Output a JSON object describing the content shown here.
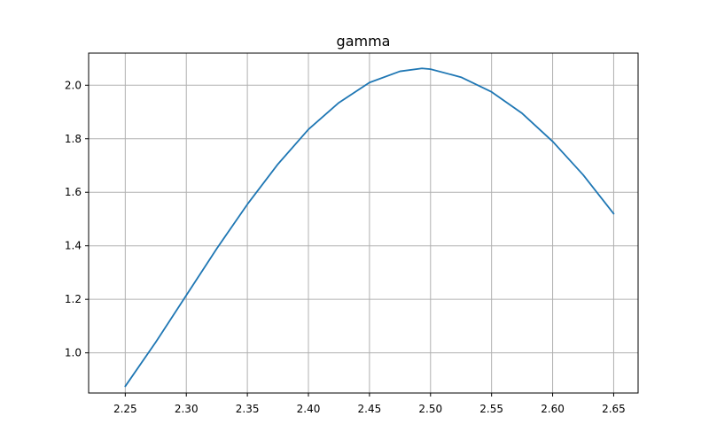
{
  "chart_data": {
    "type": "line",
    "title": "gamma",
    "xlabel": "",
    "ylabel": "",
    "xlim": [
      2.22,
      2.67
    ],
    "ylim": [
      0.85,
      2.12
    ],
    "x_ticks": [
      2.25,
      2.3,
      2.35,
      2.4,
      2.45,
      2.5,
      2.55,
      2.6,
      2.65
    ],
    "x_tick_labels": [
      "2.25",
      "2.30",
      "2.35",
      "2.40",
      "2.45",
      "2.50",
      "2.55",
      "2.60",
      "2.65"
    ],
    "y_ticks": [
      1.0,
      1.2,
      1.4,
      1.6,
      1.8,
      2.0
    ],
    "y_tick_labels": [
      "1.0",
      "1.2",
      "1.4",
      "1.6",
      "1.8",
      "2.0"
    ],
    "grid": true,
    "colors": {
      "line": "#1f77b4",
      "grid": "#b0b0b0",
      "axis": "#000000"
    },
    "series": [
      {
        "x": [
          2.25,
          2.275,
          2.3,
          2.325,
          2.35,
          2.375,
          2.4,
          2.425,
          2.45,
          2.475,
          2.493,
          2.5,
          2.525,
          2.55,
          2.575,
          2.6,
          2.625,
          2.65
        ],
        "y": [
          0.875,
          1.04,
          1.215,
          1.39,
          1.555,
          1.705,
          1.835,
          1.935,
          2.01,
          2.052,
          2.063,
          2.06,
          2.03,
          1.975,
          1.895,
          1.79,
          1.665,
          1.52
        ]
      }
    ]
  }
}
